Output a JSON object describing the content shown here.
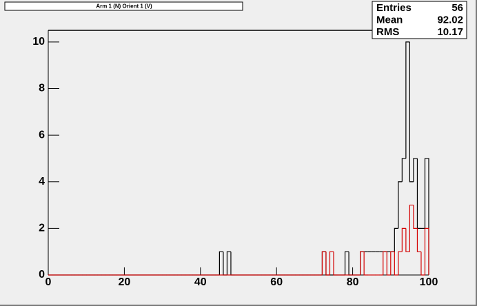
{
  "chart_data": {
    "type": "histogram",
    "title": "Arm 1 (N) Orient 1 (V)",
    "bins": [
      0,
      1,
      2,
      3,
      4,
      5,
      6,
      7,
      8,
      9,
      10,
      11,
      12,
      13,
      14,
      15,
      16,
      17,
      18,
      19,
      20,
      21,
      22,
      23,
      24,
      25,
      26,
      27,
      28,
      29,
      30,
      31,
      32,
      33,
      34,
      35,
      36,
      37,
      38,
      39,
      40,
      41,
      42,
      43,
      44,
      45,
      46,
      47,
      48,
      49,
      50,
      51,
      52,
      53,
      54,
      55,
      56,
      57,
      58,
      59,
      60,
      61,
      62,
      63,
      64,
      65,
      66,
      67,
      68,
      69,
      70,
      71,
      72,
      73,
      74,
      75,
      76,
      77,
      78,
      79,
      80,
      81,
      82,
      83,
      84,
      85,
      86,
      87,
      88,
      89,
      90,
      91,
      92,
      93,
      94,
      95,
      96,
      97,
      98,
      99,
      100
    ],
    "series": [
      {
        "color": "#000000",
        "values": [
          0,
          0,
          0,
          0,
          0,
          0,
          0,
          0,
          0,
          0,
          0,
          0,
          0,
          0,
          0,
          0,
          0,
          0,
          0,
          0,
          0,
          0,
          0,
          0,
          0,
          0,
          0,
          0,
          0,
          0,
          0,
          0,
          0,
          0,
          0,
          0,
          0,
          0,
          0,
          0,
          0,
          0,
          0,
          0,
          0,
          1,
          0,
          1,
          0,
          0,
          0,
          0,
          0,
          0,
          0,
          0,
          0,
          0,
          0,
          0,
          0,
          0,
          0,
          0,
          0,
          0,
          0,
          0,
          0,
          0,
          0,
          0,
          1,
          0,
          0,
          0,
          0,
          0,
          1,
          0,
          0,
          0,
          1,
          1,
          1,
          1,
          1,
          1,
          1,
          1,
          1,
          2,
          4,
          5,
          10,
          4,
          5,
          2,
          2,
          5
        ]
      },
      {
        "color": "#d40000",
        "values": [
          0,
          0,
          0,
          0,
          0,
          0,
          0,
          0,
          0,
          0,
          0,
          0,
          0,
          0,
          0,
          0,
          0,
          0,
          0,
          0,
          0,
          0,
          0,
          0,
          0,
          0,
          0,
          0,
          0,
          0,
          0,
          0,
          0,
          0,
          0,
          0,
          0,
          0,
          0,
          0,
          0,
          0,
          0,
          0,
          0,
          0,
          0,
          0,
          0,
          0,
          0,
          0,
          0,
          0,
          0,
          0,
          0,
          0,
          0,
          0,
          0,
          0,
          0,
          0,
          0,
          0,
          0,
          0,
          0,
          0,
          0,
          0,
          1,
          0,
          1,
          0,
          0,
          0,
          0,
          0,
          0,
          0,
          1,
          0,
          0,
          0,
          0,
          0,
          1,
          0,
          1,
          0,
          1,
          2,
          1,
          3,
          2,
          1,
          0,
          2
        ]
      }
    ],
    "xlim": [
      0,
      100
    ],
    "xticks": [
      0,
      20,
      40,
      60,
      80,
      100
    ],
    "ylim": [
      0,
      10.5
    ],
    "yticks": [
      0,
      2,
      4,
      6,
      8,
      10
    ],
    "stats": [
      {
        "label": "Entries",
        "value": 56
      },
      {
        "label": "Mean",
        "value": 92.02
      },
      {
        "label": "RMS",
        "value": 10.17
      }
    ]
  }
}
